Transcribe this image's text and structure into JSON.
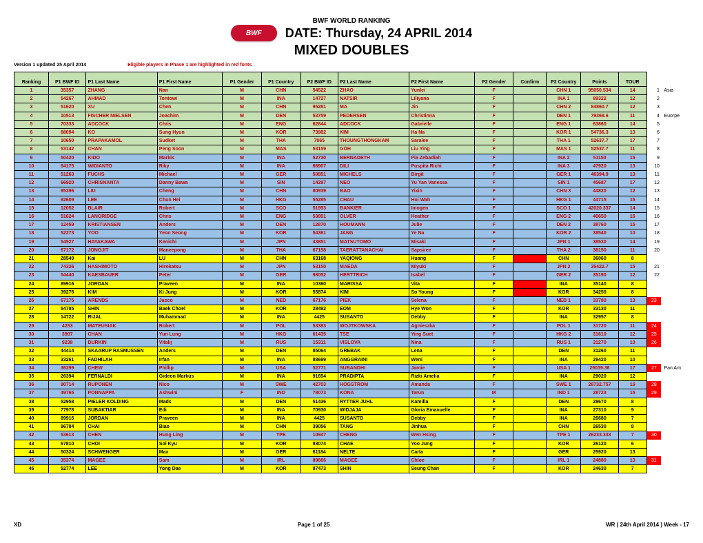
{
  "header": {
    "org": "BWF",
    "logoText": "BWF",
    "title1": "BWF   WORLD RANKING",
    "title2": "DATE: Thursday, 24  APRIL  2014",
    "title3": "MIXED DOUBLES",
    "version": "Version  1 updated 25 April 2014",
    "eligible": "Eligible players in Phase 1 are highlighted in red fonts",
    "eligibleColor": "#c00000"
  },
  "columns": [
    "Ranking",
    "P1 BWF ID",
    "P1 Last Name",
    "P1 First Name",
    "P1 Gender",
    "P1 Country",
    "P2 BWF ID",
    "P2 Last Name",
    "P2 First Name",
    "P2 Gender",
    "Confirm",
    "P2 Country",
    "Points",
    "TOUR"
  ],
  "colors": {
    "green": "#c5e0b3",
    "blue": "#9bc2e6",
    "yellow": "#ffff00",
    "red": "#ff0000",
    "redText": "#c00000",
    "black": "#000000",
    "white": "#ffffff"
  },
  "rows": [
    {
      "rank": "1",
      "p1id": "35357",
      "p1l": "ZHANG",
      "p1f": "Nan",
      "p1g": "M",
      "p1c": "CHN",
      "p2id": "54522",
      "p2l": "ZHAO",
      "p2f": "Yunlei",
      "p2g": "F",
      "conf": "",
      "p2ctry": "CHN 1",
      "pts": "95050.534",
      "tour": "14",
      "bg": "green",
      "red": true,
      "sn": "1",
      "st": "Asia"
    },
    {
      "rank": "2",
      "p1id": "54267",
      "p1l": "AHMAD",
      "p1f": "Tontowi",
      "p1g": "M",
      "p1c": "INA",
      "p2id": "14727",
      "p2l": "NATSIR",
      "p2f": "Liliyana",
      "p2g": "F",
      "conf": "",
      "p2ctry": "INA 1",
      "pts": "89322",
      "tour": "12",
      "bg": "green",
      "red": true,
      "sn": "2",
      "st": ""
    },
    {
      "rank": "3",
      "p1id": "51620",
      "p1l": "XU",
      "p1f": "Chen",
      "p1g": "M",
      "p1c": "CHN",
      "p2id": "95281",
      "p2l": "MA",
      "p2f": "Jin",
      "p2g": "F",
      "conf": "",
      "p2ctry": "CHN 2",
      "pts": "84860.7",
      "tour": "12",
      "bg": "green",
      "red": true,
      "sn": "3",
      "st": ""
    },
    {
      "rank": "4",
      "p1id": "10513",
      "p1l": "FISCHER NIELSEN",
      "p1f": "Joachim",
      "p1g": "M",
      "p1c": "DEN",
      "p2id": "53759",
      "p2l": "PEDERSEN",
      "p2f": "Christinna",
      "p2g": "F",
      "conf": "",
      "p2ctry": "DEN 1",
      "pts": "79368.6",
      "tour": "11",
      "bg": "green",
      "red": true,
      "sn": "4",
      "st": "Euorpe"
    },
    {
      "rank": "5",
      "p1id": "70333",
      "p1l": "ADCOCK",
      "p1f": "Chris",
      "p1g": "M",
      "p1c": "ENG",
      "p2id": "62844",
      "p2l": "ADCOCK",
      "p2f": "Gabrielle",
      "p2g": "F",
      "conf": "",
      "p2ctry": "ENG 1",
      "pts": "63860",
      "tour": "14",
      "bg": "green",
      "red": true,
      "sn": "5",
      "st": ""
    },
    {
      "rank": "6",
      "p1id": "88094",
      "p1l": "KO",
      "p1f": "Sung Hyun",
      "p1g": "M",
      "p1c": "KOR",
      "p2id": "73982",
      "p2l": "KIM",
      "p2f": "Ha Na",
      "p2g": "F",
      "conf": "",
      "p2ctry": "KOR 1",
      "pts": "54736.3",
      "tour": "13",
      "bg": "green",
      "red": true,
      "sn": "6",
      "st": ""
    },
    {
      "rank": "7",
      "p1id": "10650",
      "p1l": "PRAPAKAMOL",
      "p1f": "Sudket",
      "p1g": "M",
      "p1c": "THA",
      "p2id": "7065",
      "p2l": "THOUNGTHONGKAM",
      "p2f": "Saralee",
      "p2g": "F",
      "conf": "",
      "p2ctry": "THA 1",
      "pts": "52637.7",
      "tour": "17",
      "bg": "green",
      "red": true,
      "sn": "7",
      "st": ""
    },
    {
      "rank": "8",
      "p1id": "53142",
      "p1l": "CHAN",
      "p1f": "Peng Soon",
      "p1g": "M",
      "p1c": "MAS",
      "p2id": "53159",
      "p2l": "GOH",
      "p2f": "Liu Ying",
      "p2g": "F",
      "conf": "",
      "p2ctry": "MAS 1",
      "pts": "52537.7",
      "tour": "11",
      "bg": "green",
      "red": true,
      "sn": "8",
      "st": ""
    },
    {
      "rank": "9",
      "p1id": "50420",
      "p1l": "KIDO",
      "p1f": "Markis",
      "p1g": "M",
      "p1c": "INA",
      "p2id": "52730",
      "p2l": "BERNADETH",
      "p2f": "Pia Zebadiah",
      "p2g": "F",
      "conf": "",
      "p2ctry": "INA 2",
      "pts": "51150",
      "tour": "15",
      "bg": "blue",
      "red": true,
      "sn": "9",
      "st": ""
    },
    {
      "rank": "10",
      "p1id": "54175",
      "p1l": "WIDIANTO",
      "p1f": "Riky",
      "p1g": "M",
      "p1c": "INA",
      "p2id": "66907",
      "p2l": "DILI",
      "p2f": "Puspita Richi",
      "p2g": "F",
      "conf": "",
      "p2ctry": "INA 3",
      "pts": "47920",
      "tour": "13",
      "bg": "blue",
      "red": true,
      "sn": "10",
      "st": ""
    },
    {
      "rank": "11",
      "p1id": "51263",
      "p1l": "FUCHS",
      "p1f": "Michael",
      "p1g": "M",
      "p1c": "GER",
      "p2id": "50851",
      "p2l": "MICHELS",
      "p2f": "Birgit",
      "p2g": "F",
      "conf": "",
      "p2ctry": "GER 1",
      "pts": "46394.9",
      "tour": "13",
      "bg": "blue",
      "red": true,
      "sn": "11",
      "st": ""
    },
    {
      "rank": "12",
      "p1id": "66920",
      "p1l": "CHRISNANTA",
      "p1f": "Danny Bawa",
      "p1g": "M",
      "p1c": "SIN",
      "p2id": "14297",
      "p2l": "NEO",
      "p2f": "Yu Yan Vanessa",
      "p2g": "F",
      "conf": "",
      "p2ctry": "SIN 1",
      "pts": "45687",
      "tour": "17",
      "bg": "blue",
      "red": true,
      "sn": "12",
      "st": ""
    },
    {
      "rank": "13",
      "p1id": "95396",
      "p1l": "LIU",
      "p1f": "Cheng",
      "p1g": "M",
      "p1c": "CHN",
      "p2id": "80939",
      "p2l": "BAO",
      "p2f": "Yixin",
      "p2g": "F",
      "conf": "",
      "p2ctry": "CHN 3",
      "pts": "44820",
      "tour": "12",
      "bg": "blue",
      "red": true,
      "sn": "13",
      "st": ""
    },
    {
      "rank": "14",
      "p1id": "92609",
      "p1l": "LEE",
      "p1f": "Chun Hei",
      "p1g": "M",
      "p1c": "HKG",
      "p2id": "55285",
      "p2l": "CHAU",
      "p2f": "Hoi Wah",
      "p2g": "F",
      "conf": "",
      "p2ctry": "HKG 1",
      "pts": "44715",
      "tour": "15",
      "bg": "blue",
      "red": true,
      "sn": "14",
      "st": ""
    },
    {
      "rank": "15",
      "p1id": "12052",
      "p1l": "BLAIR",
      "p1f": "Robert",
      "p1g": "M",
      "p1c": "SCO",
      "p2id": "51953",
      "p2l": "BANKIER",
      "p2f": "Imogen",
      "p2g": "F",
      "conf": "",
      "p2ctry": "SCO 1",
      "pts": "42020.337",
      "tour": "14",
      "bg": "blue",
      "red": true,
      "sn": "15",
      "st": ""
    },
    {
      "rank": "16",
      "p1id": "51624",
      "p1l": "LANGRIDGE",
      "p1f": "Chris",
      "p1g": "M",
      "p1c": "ENG",
      "p2id": "53851",
      "p2l": "OLVER",
      "p2f": "Heather",
      "p2g": "F",
      "conf": "",
      "p2ctry": "ENG 2",
      "pts": "40650",
      "tour": "16",
      "bg": "blue",
      "red": true,
      "sn": "16",
      "st": ""
    },
    {
      "rank": "17",
      "p1id": "12459",
      "p1l": "KRISTIANSEN",
      "p1f": "Anders",
      "p1g": "M",
      "p1c": "DEN",
      "p2id": "12870",
      "p2l": "HOUMANN",
      "p2f": "Julie",
      "p2g": "F",
      "conf": "",
      "p2ctry": "DEN 2",
      "pts": "38760",
      "tour": "15",
      "bg": "blue",
      "red": true,
      "sn": "17",
      "st": ""
    },
    {
      "rank": "18",
      "p1id": "52273",
      "p1l": "YOO",
      "p1f": "Yeon Seong",
      "p1g": "M",
      "p1c": "KOR",
      "p2id": "54361",
      "p2l": "JANG",
      "p2f": "Ye Na",
      "p2g": "F",
      "conf": "",
      "p2ctry": "KOR 2",
      "pts": "38540",
      "tour": "10",
      "bg": "blue",
      "red": true,
      "sn": "18",
      "st": ""
    },
    {
      "rank": "19",
      "p1id": "54527",
      "p1l": "HAYAKAWA",
      "p1f": "Kenichi",
      "p1g": "M",
      "p1c": "JPN",
      "p2id": "43851",
      "p2l": "MATSUTOMO",
      "p2f": "Misaki",
      "p2g": "F",
      "conf": "",
      "p2ctry": "JPN 1",
      "pts": "38530",
      "tour": "14",
      "bg": "blue",
      "red": true,
      "sn": "19",
      "st": ""
    },
    {
      "rank": "20",
      "p1id": "67172",
      "p1l": "JONGJIT",
      "p1f": "Maneepong",
      "p1g": "M",
      "p1c": "THA",
      "p2id": "67158",
      "p2l": "TAERATTANACHAI",
      "p2f": "Sapsiree",
      "p2g": "F",
      "conf": "",
      "p2ctry": "THA 2",
      "pts": "38150",
      "tour": "11",
      "bg": "blue",
      "red": true,
      "sn": "20",
      "st": ""
    },
    {
      "rank": "21",
      "p1id": "28549",
      "p1l": "Kai",
      "p1f": "LU",
      "p1g": "M",
      "p1c": "CHN",
      "p2id": "63168",
      "p2l": "YAQIONG",
      "p2f": "Huang",
      "p2g": "F",
      "conf": "R",
      "p2ctry": "CHN",
      "pts": "36060",
      "tour": "8",
      "bg": "yellow",
      "red": false,
      "sn": "",
      "st": ""
    },
    {
      "rank": "22",
      "p1id": "74326",
      "p1l": "HASHIMOTO",
      "p1f": "Hirokatsu",
      "p1g": "M",
      "p1c": "JPN",
      "p2id": "53150",
      "p2l": "MAEDA",
      "p2f": "Miyuki",
      "p2g": "F",
      "conf": "",
      "p2ctry": "JPN 2",
      "pts": "35422.7",
      "tour": "15",
      "bg": "blue",
      "red": true,
      "sn": "21",
      "st": ""
    },
    {
      "rank": "23",
      "p1id": "54440",
      "p1l": "KAESBAUER",
      "p1f": "Peter",
      "p1g": "M",
      "p1c": "GER",
      "p2id": "98052",
      "p2l": "HERTTRICH",
      "p2f": "Isabel",
      "p2g": "F",
      "conf": "",
      "p2ctry": "GER 2",
      "pts": "35190",
      "tour": "12",
      "bg": "blue",
      "red": true,
      "sn": "22",
      "st": ""
    },
    {
      "rank": "24",
      "p1id": "89916",
      "p1l": "JORDAN",
      "p1f": "Praveen",
      "p1g": "M",
      "p1c": "INA",
      "p2id": "10360",
      "p2l": "MARISSA",
      "p2f": "Vita",
      "p2g": "F",
      "conf": "R",
      "p2ctry": "INA",
      "pts": "35140",
      "tour": "8",
      "bg": "yellow",
      "red": false,
      "sn": "",
      "st": ""
    },
    {
      "rank": "25",
      "p1id": "39276",
      "p1l": "KIM",
      "p1f": "Ki Jung",
      "p1g": "M",
      "p1c": "KOR",
      "p2id": "55874",
      "p2l": "KIM",
      "p2f": "So Young",
      "p2g": "F",
      "conf": "R",
      "p2ctry": "KOR",
      "pts": "34250",
      "tour": "8",
      "bg": "yellow",
      "red": false,
      "sn": "",
      "st": ""
    },
    {
      "rank": "26",
      "p1id": "67175",
      "p1l": "ARENDS",
      "p1f": "Jacco",
      "p1g": "M",
      "p1c": "NED",
      "p2id": "67176",
      "p2l": "PIEK",
      "p2f": "Selena",
      "p2g": "F",
      "conf": "",
      "p2ctry": "NED 1",
      "pts": "33780",
      "tour": "13",
      "bg": "blue",
      "red": true,
      "sn": "23",
      "st": "",
      "snRed": true
    },
    {
      "rank": "27",
      "p1id": "54785",
      "p1l": "SHIN",
      "p1f": "Baek Choel",
      "p1g": "M",
      "p1c": "KOR",
      "p2id": "28492",
      "p2l": "EOM",
      "p2f": "Hye Won",
      "p2g": "F",
      "conf": "",
      "p2ctry": "KOR",
      "pts": "33130",
      "tour": "11",
      "bg": "yellow",
      "red": false,
      "sn": "",
      "st": ""
    },
    {
      "rank": "28",
      "p1id": "14722",
      "p1l": "RIJAL",
      "p1f": "Muhammad",
      "p1g": "M",
      "p1c": "INA",
      "p2id": "4425",
      "p2l": "SUSANTO",
      "p2f": "Debby",
      "p2g": "F",
      "conf": "",
      "p2ctry": "INA",
      "pts": "32957",
      "tour": "8",
      "bg": "yellow",
      "red": false,
      "sn": "",
      "st": ""
    },
    {
      "rank": "29",
      "p1id": "4253",
      "p1l": "MATEUSIAK",
      "p1f": "Robert",
      "p1g": "M",
      "p1c": "POL",
      "p2id": "53383",
      "p2l": "WOJTKOWSKA",
      "p2f": "Agnieszka",
      "p2g": "F",
      "conf": "",
      "p2ctry": "POL 1",
      "pts": "31720",
      "tour": "11",
      "bg": "blue",
      "red": true,
      "sn": "24",
      "st": "",
      "snRed": true
    },
    {
      "rank": "30",
      "p1id": "3907",
      "p1l": "CHAN",
      "p1f": "Yun Lung",
      "p1g": "M",
      "p1c": "HKG",
      "p2id": "61435",
      "p2l": "TSE",
      "p2f": "Ying Suet",
      "p2g": "F",
      "conf": "",
      "p2ctry": "HKG 2",
      "pts": "31610",
      "tour": "12",
      "bg": "blue",
      "red": true,
      "sn": "25",
      "st": "",
      "snRed": true
    },
    {
      "rank": "31",
      "p1id": "9238",
      "p1l": "DURKIN",
      "p1f": "Vitalij",
      "p1g": "M",
      "p1c": "RUS",
      "p2id": "15311",
      "p2l": "VISLOVA",
      "p2f": "Nina",
      "p2g": "F",
      "conf": "",
      "p2ctry": "RUS 1",
      "pts": "31270",
      "tour": "10",
      "bg": "blue",
      "red": true,
      "sn": "26",
      "st": "",
      "snRed": true
    },
    {
      "rank": "32",
      "p1id": "44414",
      "p1l": "SKAARUP RASMUSSEN",
      "p1f": "Anders",
      "p1g": "M",
      "p1c": "DEN",
      "p2id": "85064",
      "p2l": "GREBAK",
      "p2f": "Lena",
      "p2g": "F",
      "conf": "",
      "p2ctry": "DEN",
      "pts": "31260",
      "tour": "11",
      "bg": "yellow",
      "red": false,
      "sn": "",
      "st": ""
    },
    {
      "rank": "33",
      "p1id": "33261",
      "p1l": "FADHILAH",
      "p1f": "Irfan",
      "p1g": "M",
      "p1c": "INA",
      "p2id": "88699",
      "p2l": "ANGGRAINI",
      "p2f": "Weni",
      "p2g": "F",
      "conf": "",
      "p2ctry": "INA",
      "pts": "29420",
      "tour": "10",
      "bg": "yellow",
      "red": false,
      "sn": "",
      "st": ""
    },
    {
      "rank": "34",
      "p1id": "36299",
      "p1l": "CHEW",
      "p1f": "Phillip",
      "p1g": "M",
      "p1c": "USA",
      "p2id": "52771",
      "p2l": "SUBANDHI",
      "p2f": "Jamie",
      "p2g": "F",
      "conf": "",
      "p2ctry": "USA 1",
      "pts": "29039.36",
      "tour": "17",
      "bg": "blue",
      "red": true,
      "sn": "27",
      "st": "Pan Am",
      "snRed": true
    },
    {
      "rank": "35",
      "p1id": "26394",
      "p1l": "FERNALDI",
      "p1f": "Gideon Markus",
      "p1g": "M",
      "p1c": "INA",
      "p2id": "91654",
      "p2l": "PRADIPTA",
      "p2f": "Rizki Amelia",
      "p2g": "F",
      "conf": "",
      "p2ctry": "INA",
      "pts": "29020",
      "tour": "12",
      "bg": "yellow",
      "red": false,
      "sn": "",
      "st": ""
    },
    {
      "rank": "36",
      "p1id": "90714",
      "p1l": "RUPONEN",
      "p1f": "Nico",
      "p1g": "M",
      "p1c": "SWE",
      "p2id": "42703",
      "p2l": "HOGSTROM",
      "p2f": "Amanda",
      "p2g": "F",
      "conf": "",
      "p2ctry": "SWE 1",
      "pts": "28732.757",
      "tour": "16",
      "bg": "blue",
      "red": true,
      "sn": "28",
      "st": "",
      "snRed": true
    },
    {
      "rank": "37",
      "p1id": "49765",
      "p1l": "PONNAPPA",
      "p1f": "Ashwini",
      "p1g": "F",
      "p1c": "IND",
      "p2id": "78073",
      "p2l": "KONA",
      "p2f": "Tarun",
      "p2g": "M",
      "conf": "",
      "p2ctry": "IND 1",
      "pts": "28723",
      "tour": "15",
      "bg": "blue",
      "red": true,
      "sn": "29",
      "st": "",
      "snRed": true
    },
    {
      "rank": "38",
      "p1id": "52958",
      "p1l": "PIELER KOLDING",
      "p1f": "Mads",
      "p1g": "M",
      "p1c": "DEN",
      "p2id": "51436",
      "p2l": "RYTTER JUHL",
      "p2f": "Kamilla",
      "p2g": "F",
      "conf": "",
      "p2ctry": "DEN",
      "pts": "28670",
      "tour": "8",
      "bg": "yellow",
      "red": false,
      "sn": "",
      "st": ""
    },
    {
      "rank": "39",
      "p1id": "77978",
      "p1l": "SUBAKTIAR",
      "p1f": "Edi",
      "p1g": "M",
      "p1c": "INA",
      "p2id": "70930",
      "p2l": "WIDJAJA",
      "p2f": "Gloria Emanuelle",
      "p2g": "F",
      "conf": "",
      "p2ctry": "INA",
      "pts": "27310",
      "tour": "9",
      "bg": "yellow",
      "red": false,
      "sn": "",
      "st": ""
    },
    {
      "rank": "40",
      "p1id": "89916",
      "p1l": "JORDAN",
      "p1f": "Praveen",
      "p1g": "M",
      "p1c": "INA",
      "p2id": "4425",
      "p2l": "SUSANTO",
      "p2f": "Debby",
      "p2g": "F",
      "conf": "",
      "p2ctry": "INA",
      "pts": "26680",
      "tour": "7",
      "bg": "yellow",
      "red": false,
      "sn": "",
      "st": ""
    },
    {
      "rank": "41",
      "p1id": "96784",
      "p1l": "CHAI",
      "p1f": "Biao",
      "p1g": "M",
      "p1c": "CHN",
      "p2id": "39056",
      "p2l": "TANG",
      "p2f": "Jinhua",
      "p2g": "F",
      "conf": "",
      "p2ctry": "CHN",
      "pts": "26530",
      "tour": "8",
      "bg": "yellow",
      "red": false,
      "sn": "",
      "st": ""
    },
    {
      "rank": "42",
      "p1id": "53613",
      "p1l": "CHEN",
      "p1f": "Hung Ling",
      "p1g": "M",
      "p1c": "TPE",
      "p2id": "10947",
      "p2l": "CHENG",
      "p2f": "Wen Hsing",
      "p2g": "F",
      "conf": "",
      "p2ctry": "TPE 1",
      "pts": "26233.333",
      "tour": "7",
      "bg": "blue",
      "red": true,
      "sn": "30",
      "st": "",
      "snRed": true
    },
    {
      "rank": "43",
      "p1id": "67810",
      "p1l": "CHOI",
      "p1f": "Sol Kyu",
      "p1g": "M",
      "p1c": "KOR",
      "p2id": "93074",
      "p2l": "CHAE",
      "p2f": "Yoo Jung",
      "p2g": "F",
      "conf": "",
      "p2ctry": "KOR",
      "pts": "26120",
      "tour": "6",
      "bg": "yellow",
      "red": false,
      "sn": "",
      "st": ""
    },
    {
      "rank": "44",
      "p1id": "50324",
      "p1l": "SCHWENGER",
      "p1f": "Max",
      "p1g": "M",
      "p1c": "GER",
      "p2id": "61184",
      "p2l": "NELTE",
      "p2f": "Carla",
      "p2g": "F",
      "conf": "",
      "p2ctry": "GER",
      "pts": "25920",
      "tour": "13",
      "bg": "yellow",
      "red": false,
      "sn": "",
      "st": ""
    },
    {
      "rank": "45",
      "p1id": "35374",
      "p1l": "MAGEE",
      "p1f": "Sam",
      "p1g": "M",
      "p1c": "IRL",
      "p2id": "89666",
      "p2l": "MAGEE",
      "p2f": "Chloe",
      "p2g": "F",
      "conf": "",
      "p2ctry": "IRL 1",
      "pts": "24880",
      "tour": "13",
      "bg": "blue",
      "red": true,
      "sn": "31",
      "st": "",
      "snRed": true
    },
    {
      "rank": "46",
      "p1id": "52774",
      "p1l": "LEE",
      "p1f": "Yong Dae",
      "p1g": "M",
      "p1c": "KOR",
      "p2id": "87473",
      "p2l": "SHIN",
      "p2f": "Seung Chan",
      "p2g": "F",
      "conf": "",
      "p2ctry": "KOR",
      "pts": "24630",
      "tour": "7",
      "bg": "yellow",
      "red": false,
      "sn": "",
      "st": ""
    }
  ],
  "footer": {
    "left": "XD",
    "center": "Page 1 of 25",
    "right": "WR ( 24th April 2014 ) Week - 17"
  }
}
